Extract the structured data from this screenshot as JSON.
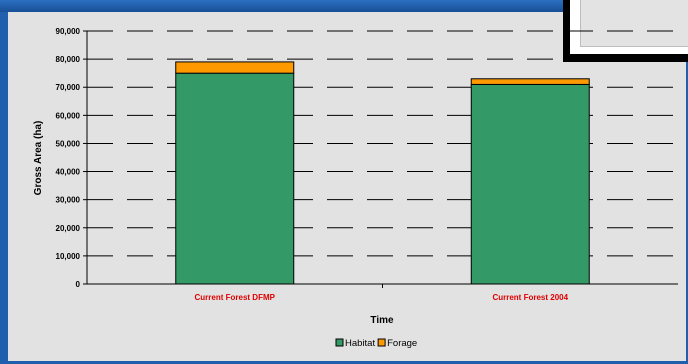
{
  "chart_data": {
    "type": "bar",
    "stacked": true,
    "categories": [
      "Current Forest DFMP",
      "Current Forest 2004"
    ],
    "series": [
      {
        "name": "Habitat",
        "values": [
          75000,
          71000
        ],
        "color": "#339966"
      },
      {
        "name": "Forage",
        "values": [
          4000,
          2000
        ],
        "color": "#ff9900"
      }
    ],
    "title": "",
    "xlabel": "Time",
    "ylabel": "Gross Area (ha)",
    "ylim": [
      0,
      90000
    ],
    "yticks": [
      0,
      10000,
      20000,
      30000,
      40000,
      50000,
      60000,
      70000,
      80000,
      90000
    ],
    "ytick_labels": [
      "0",
      "10,000",
      "20,000",
      "30,000",
      "40,000",
      "50,000",
      "60,000",
      "70,000",
      "80,000",
      "90,000"
    ],
    "grid": "dashed horizontal",
    "legend_position": "bottom"
  },
  "colors": {
    "frame": "#1f5fae",
    "plot_background": "#e2e2e2",
    "category_label": "#e00000"
  }
}
